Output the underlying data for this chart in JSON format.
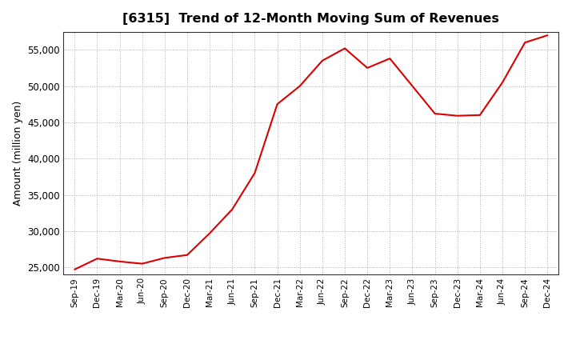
{
  "title": "[6315]  Trend of 12-Month Moving Sum of Revenues",
  "ylabel": "Amount (million yen)",
  "line_color": "#dd0000",
  "background_color": "#ffffff",
  "plot_bg_color": "#ffffff",
  "grid_color": "#999999",
  "ylim": [
    24000,
    57500
  ],
  "yticks": [
    25000,
    30000,
    35000,
    40000,
    45000,
    50000,
    55000
  ],
  "x_labels": [
    "Sep-19",
    "Dec-19",
    "Mar-20",
    "Jun-20",
    "Sep-20",
    "Dec-20",
    "Mar-21",
    "Jun-21",
    "Sep-21",
    "Dec-21",
    "Mar-22",
    "Jun-22",
    "Sep-22",
    "Dec-22",
    "Mar-23",
    "Jun-23",
    "Sep-23",
    "Dec-23",
    "Mar-24",
    "Jun-24",
    "Sep-24",
    "Dec-24"
  ],
  "values": [
    24700,
    26200,
    25800,
    25500,
    26300,
    26700,
    29700,
    33000,
    38000,
    47500,
    50000,
    53500,
    55200,
    52500,
    53800,
    50000,
    46200,
    45900,
    46000,
    50500,
    56000,
    57000
  ]
}
